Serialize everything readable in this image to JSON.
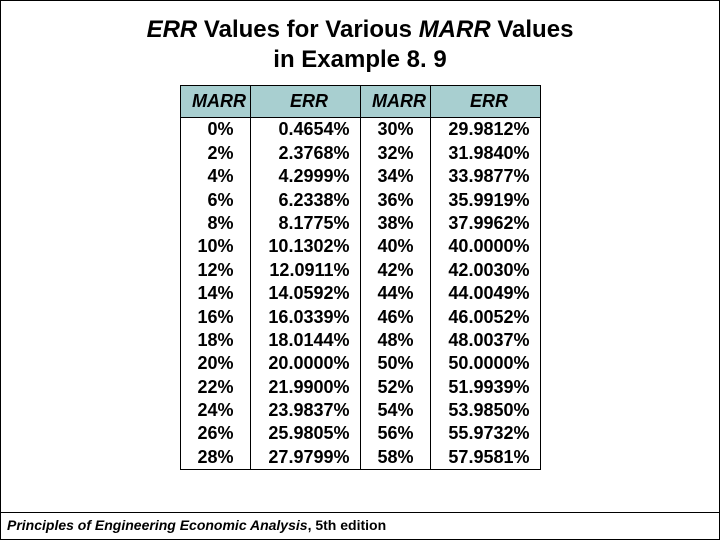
{
  "title_line1_a": "ERR",
  "title_line1_b": " Values for Various ",
  "title_line1_c": "MARR",
  "title_line1_d": " Values",
  "title_line2": "in Example 8. 9",
  "table": {
    "header_bg": "#a8cfd0",
    "columns": [
      "MARR",
      "ERR",
      "MARR",
      "ERR"
    ],
    "rows": [
      [
        "0%",
        "0.4654%",
        "30%",
        "29.9812%"
      ],
      [
        "2%",
        "2.3768%",
        "32%",
        "31.9840%"
      ],
      [
        "4%",
        "4.2999%",
        "34%",
        "33.9877%"
      ],
      [
        "6%",
        "6.2338%",
        "36%",
        "35.9919%"
      ],
      [
        "8%",
        "8.1775%",
        "38%",
        "37.9962%"
      ],
      [
        "10%",
        "10.1302%",
        "40%",
        "40.0000%"
      ],
      [
        "12%",
        "12.0911%",
        "42%",
        "42.0030%"
      ],
      [
        "14%",
        "14.0592%",
        "44%",
        "44.0049%"
      ],
      [
        "16%",
        "16.0339%",
        "46%",
        "46.0052%"
      ],
      [
        "18%",
        "18.0144%",
        "48%",
        "48.0037%"
      ],
      [
        "20%",
        "20.0000%",
        "50%",
        "50.0000%"
      ],
      [
        "22%",
        "21.9900%",
        "52%",
        "51.9939%"
      ],
      [
        "24%",
        "23.9837%",
        "54%",
        "53.9850%"
      ],
      [
        "26%",
        "25.9805%",
        "56%",
        "55.9732%"
      ],
      [
        "28%",
        "27.9799%",
        "58%",
        "57.9581%"
      ]
    ]
  },
  "footer_ital": "Principles of Engineering Economic Analysis",
  "footer_roman": ", 5th edition"
}
